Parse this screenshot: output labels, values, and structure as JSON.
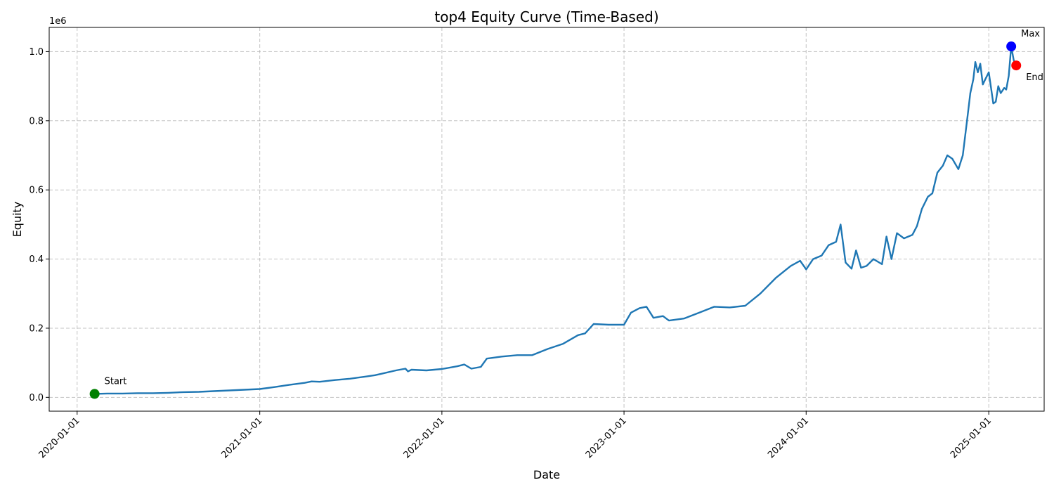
{
  "chart_data": {
    "type": "line",
    "title": "top4 Equity Curve (Time-Based)",
    "xlabel": "Date",
    "ylabel": "Equity",
    "y_multiplier_label": "1e6",
    "x_tick_labels": [
      "2020-01-01",
      "2021-01-01",
      "2022-01-01",
      "2023-01-01",
      "2024-01-01",
      "2025-01-01"
    ],
    "x_ticks": [
      "2020-01-01",
      "2021-01-01",
      "2022-01-01",
      "2023-01-01",
      "2024-01-01",
      "2025-01-01"
    ],
    "y_tick_labels": [
      "0.0",
      "0.2",
      "0.4",
      "0.6",
      "0.8",
      "1.0"
    ],
    "y_ticks": [
      0,
      0.2,
      0.4,
      0.6,
      0.8,
      1.0
    ],
    "xlim": [
      "2019-11-06",
      "2025-04-22"
    ],
    "ylim": [
      -0.04,
      1.07
    ],
    "grid": true,
    "colors": {
      "line": "#1f77b4",
      "start": "#008000",
      "max": "#0000ff",
      "end": "#ff0000"
    },
    "series": [
      {
        "x": [
          "2020-02-05",
          "2020-03-01",
          "2020-04-01",
          "2020-05-01",
          "2020-06-01",
          "2020-07-01",
          "2020-08-01",
          "2020-09-01",
          "2020-10-01",
          "2020-11-01",
          "2020-12-01",
          "2021-01-01",
          "2021-02-01",
          "2021-03-01",
          "2021-04-01",
          "2021-04-15",
          "2021-05-01",
          "2021-06-01",
          "2021-07-01",
          "2021-08-01",
          "2021-08-20",
          "2021-09-01",
          "2021-10-01",
          "2021-10-20",
          "2021-10-25",
          "2021-11-01",
          "2021-12-01",
          "2022-01-01",
          "2022-02-01",
          "2022-02-15",
          "2022-03-01",
          "2022-03-20",
          "2022-04-01",
          "2022-05-01",
          "2022-06-01",
          "2022-07-01",
          "2022-08-01",
          "2022-09-01",
          "2022-10-01",
          "2022-10-15",
          "2022-11-01",
          "2022-12-01",
          "2023-01-01",
          "2023-01-15",
          "2023-02-01",
          "2023-02-15",
          "2023-03-01",
          "2023-03-20",
          "2023-04-01",
          "2023-05-01",
          "2023-06-01",
          "2023-07-01",
          "2023-08-01",
          "2023-09-01",
          "2023-10-01",
          "2023-11-01",
          "2023-12-01",
          "2023-12-20",
          "2024-01-01",
          "2024-01-15",
          "2024-02-01",
          "2024-02-15",
          "2024-03-01",
          "2024-03-10",
          "2024-03-20",
          "2024-04-01",
          "2024-04-10",
          "2024-04-20",
          "2024-05-01",
          "2024-05-15",
          "2024-06-01",
          "2024-06-10",
          "2024-06-20",
          "2024-07-01",
          "2024-07-15",
          "2024-08-01",
          "2024-08-10",
          "2024-08-20",
          "2024-09-01",
          "2024-09-10",
          "2024-09-20",
          "2024-10-01",
          "2024-10-10",
          "2024-10-20",
          "2024-11-01",
          "2024-11-10",
          "2024-11-20",
          "2024-11-25",
          "2024-12-01",
          "2024-12-05",
          "2024-12-10",
          "2024-12-15",
          "2024-12-20",
          "2024-12-25",
          "2025-01-01",
          "2025-01-10",
          "2025-01-15",
          "2025-01-20",
          "2025-01-25",
          "2025-02-01",
          "2025-02-05",
          "2025-02-10",
          "2025-02-15",
          "2025-02-20",
          "2025-02-25"
        ],
        "y": [
          0.01,
          0.011,
          0.011,
          0.012,
          0.012,
          0.013,
          0.015,
          0.016,
          0.018,
          0.02,
          0.022,
          0.024,
          0.03,
          0.036,
          0.042,
          0.046,
          0.045,
          0.05,
          0.054,
          0.06,
          0.064,
          0.068,
          0.078,
          0.083,
          0.075,
          0.08,
          0.078,
          0.082,
          0.09,
          0.095,
          0.083,
          0.088,
          0.112,
          0.118,
          0.122,
          0.122,
          0.14,
          0.155,
          0.18,
          0.185,
          0.212,
          0.21,
          0.21,
          0.245,
          0.258,
          0.262,
          0.23,
          0.235,
          0.222,
          0.228,
          0.245,
          0.262,
          0.26,
          0.265,
          0.3,
          0.345,
          0.38,
          0.395,
          0.37,
          0.4,
          0.41,
          0.44,
          0.45,
          0.5,
          0.39,
          0.372,
          0.425,
          0.375,
          0.38,
          0.4,
          0.385,
          0.465,
          0.4,
          0.475,
          0.46,
          0.47,
          0.495,
          0.545,
          0.58,
          0.59,
          0.65,
          0.67,
          0.7,
          0.69,
          0.66,
          0.7,
          0.82,
          0.88,
          0.92,
          0.97,
          0.94,
          0.965,
          0.905,
          0.92,
          0.94,
          0.85,
          0.855,
          0.9,
          0.88,
          0.895,
          0.89,
          0.93,
          1.015,
          0.975,
          0.96
        ]
      }
    ],
    "annotations": [
      {
        "label": "Start",
        "x": "2020-02-05",
        "y": 0.01
      },
      {
        "label": "Max",
        "x": "2025-02-15",
        "y": 1.015
      },
      {
        "label": "End",
        "x": "2025-02-25",
        "y": 0.96
      }
    ]
  }
}
